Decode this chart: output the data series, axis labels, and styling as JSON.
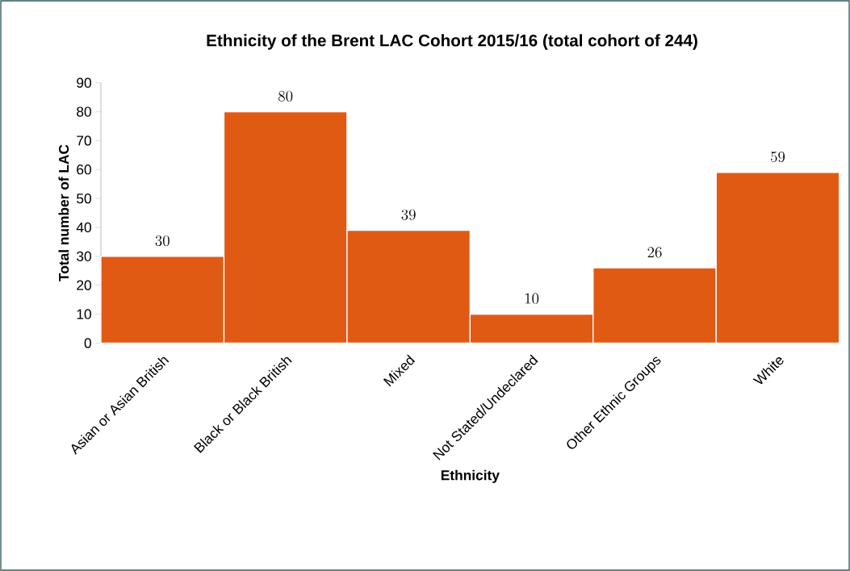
{
  "chart_data": {
    "type": "bar",
    "title": "Ethnicity of the Brent LAC Cohort 2015/16 (total cohort of 244)",
    "xlabel": "Ethnicity",
    "ylabel": "Total number of LAC",
    "categories": [
      "Asian or Asian British",
      "Black or Black British",
      "Mixed",
      "Not Stated/Undeclared",
      "Other Ethnic Groups",
      "White"
    ],
    "values": [
      30,
      80,
      39,
      10,
      26,
      59
    ],
    "color": "#e05a14",
    "ylim": [
      0,
      90
    ],
    "yticks": [
      0,
      10,
      20,
      30,
      40,
      50,
      60,
      70,
      80,
      90
    ],
    "grid": false,
    "data_labels": true
  }
}
